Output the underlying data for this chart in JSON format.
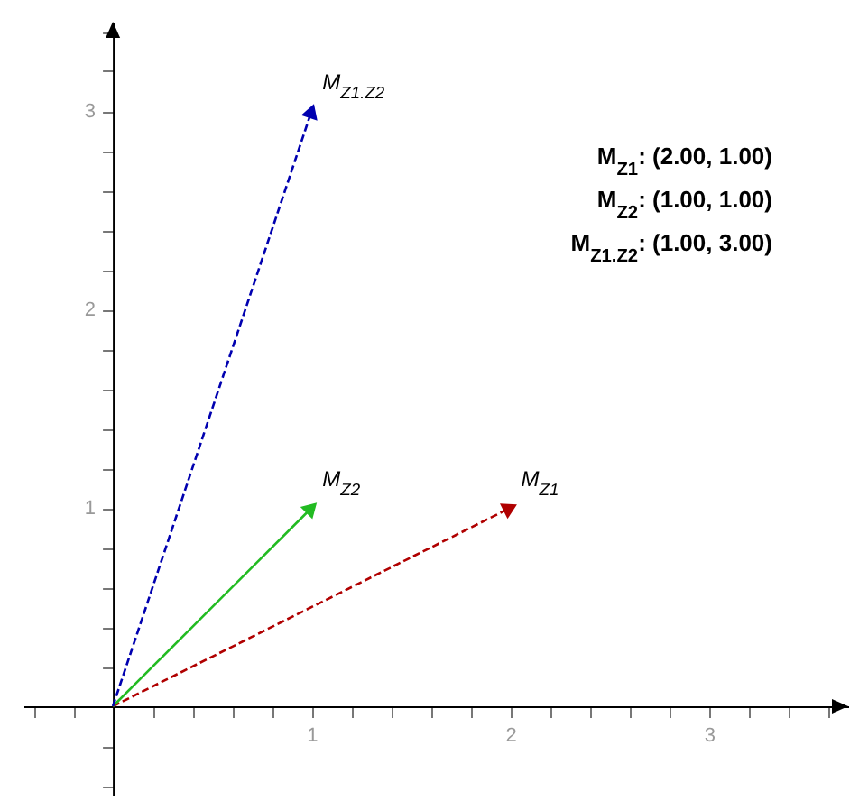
{
  "chart_data": {
    "type": "line",
    "series": [
      {
        "name": "M$_{Z1}$",
        "color": "#b00000",
        "x": [
          0,
          2
        ],
        "values": [
          0,
          1
        ],
        "line_style": "dashed"
      },
      {
        "name": "M$_{Z2}$",
        "color": "#22bb22",
        "x": [
          0,
          1
        ],
        "values": [
          0,
          1
        ],
        "line_style": "solid"
      },
      {
        "name": "M$_{Z1.Z2}$",
        "color": "#0000b0",
        "x": [
          0,
          1
        ],
        "values": [
          0,
          3
        ],
        "line_style": "dashed"
      }
    ],
    "xlim": [
      -0.45,
      3.7
    ],
    "ylim": [
      -0.45,
      3.45
    ],
    "xticks": [
      {
        "value": -0.4,
        "label": null
      },
      {
        "value": -0.2,
        "label": null
      },
      {
        "value": 0.2,
        "label": null
      },
      {
        "value": 0.4,
        "label": null
      },
      {
        "value": 0.6,
        "label": null
      },
      {
        "value": 0.8,
        "label": null
      },
      1,
      {
        "value": 1.2,
        "label": null
      },
      {
        "value": 1.4,
        "label": null
      },
      {
        "value": 1.6,
        "label": null
      },
      {
        "value": 1.8,
        "label": null
      },
      2,
      {
        "value": 2.2,
        "label": null
      },
      {
        "value": 2.4,
        "label": null
      },
      {
        "value": 2.6,
        "label": null
      },
      {
        "value": 2.8,
        "label": null
      },
      3,
      {
        "value": 3.2,
        "label": null
      },
      {
        "value": 3.4,
        "label": null
      },
      {
        "value": 3.6,
        "label": null
      }
    ],
    "yticks": [
      {
        "value": -0.4,
        "label": null
      },
      {
        "value": -0.2,
        "label": null
      },
      {
        "value": 0.2,
        "label": null
      },
      {
        "value": 0.4,
        "label": null
      },
      {
        "value": 0.6,
        "label": null
      },
      {
        "value": 0.8,
        "label": null
      },
      1,
      {
        "value": 1.2,
        "label": null
      },
      {
        "value": 1.4,
        "label": null
      },
      {
        "value": 1.6,
        "label": null
      },
      {
        "value": 1.8,
        "label": null
      },
      2,
      {
        "value": 2.2,
        "label": null
      },
      {
        "value": 2.4,
        "label": null
      },
      {
        "value": 2.6,
        "label": null
      },
      {
        "value": 2.8,
        "label": null
      },
      3,
      {
        "value": 3.2,
        "label": null
      },
      {
        "value": 3.4,
        "label": null
      }
    ],
    "marker": "triangle",
    "annotations": [
      "M$_{Z1}$: (2.00, 1.00)",
      "M$_{Z2}$: (1.00, 1.00)",
      "M$_{Z1.Z2}$: (1.00, 3.00)"
    ]
  }
}
